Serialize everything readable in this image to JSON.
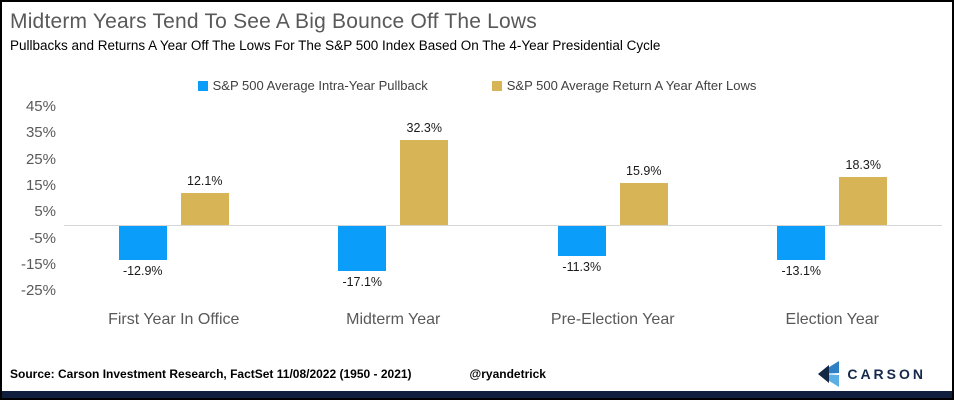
{
  "header": {
    "title": "Midterm Years Tend To See A Big Bounce Off The Lows",
    "subtitle": "Pullbacks and Returns A Year Off The Lows For The S&P 500 Index Based On The 4-Year Presidential Cycle"
  },
  "chart_data": {
    "type": "bar",
    "categories": [
      "First Year In Office",
      "Midterm Year",
      "Pre-Election Year",
      "Election Year"
    ],
    "series": [
      {
        "name": "S&P 500 Average Intra-Year Pullback",
        "color": "#0a9efa",
        "values": [
          -12.9,
          -17.1,
          -11.3,
          -13.1
        ]
      },
      {
        "name": "S&P 500 Average Return A Year After Lows",
        "color": "#d7b456",
        "values": [
          12.1,
          32.3,
          15.9,
          18.3
        ]
      }
    ],
    "data_labels": {
      "pullback": [
        "-12.9%",
        "-17.1%",
        "-11.3%",
        "-13.1%"
      ],
      "return_after_lows": [
        "12.1%",
        "32.3%",
        "15.9%",
        "18.3%"
      ]
    },
    "y_tick_values": [
      45,
      35,
      25,
      15,
      5,
      -5,
      -15,
      -25
    ],
    "value_suffix": "%",
    "ylim": [
      -25,
      45
    ],
    "grid": false,
    "legend_position": "top"
  },
  "footer": {
    "source": "Source: Carson Investment Research, FactSet 11/08/2022 (1950 - 2021)",
    "handle": "@ryandetrick",
    "brand": "CARSON"
  },
  "colors": {
    "title_gray": "#595959",
    "axis_gray": "#595959",
    "pullback_blue": "#0a9efa",
    "return_gold": "#d7b456",
    "zero_line": "#d6d6d6",
    "bottom_bar_navy": "#0f1f3d",
    "brand_navy": "#16294a",
    "logo_blue_mid": "#2e80c4",
    "logo_blue_light": "#5ab0e4",
    "logo_dark": "#122844"
  }
}
